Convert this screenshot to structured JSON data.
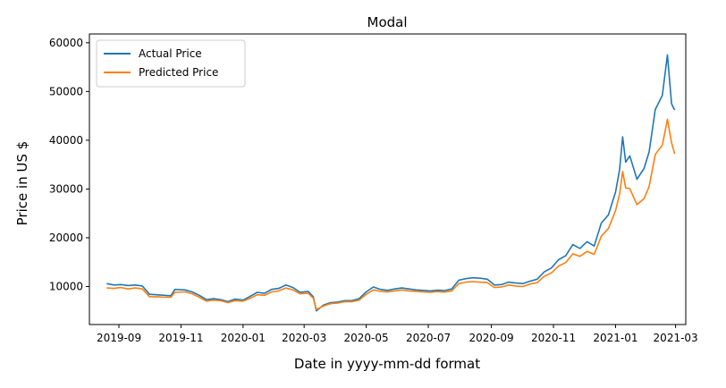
{
  "chart_data": {
    "type": "line",
    "title": "Modal",
    "xlabel": "Date in yyyy-mm-dd format",
    "ylabel": "Price in US $",
    "x_ticks": [
      "2019-09",
      "2019-11",
      "2020-01",
      "2020-03",
      "2020-05",
      "2020-07",
      "2020-09",
      "2020-11",
      "2021-01",
      "2021-03"
    ],
    "y_ticks": [
      10000,
      20000,
      30000,
      40000,
      50000,
      60000
    ],
    "x_range": [
      "2019-08-03",
      "2021-03-11"
    ],
    "ylim": [
      2200,
      61800
    ],
    "grid": false,
    "legend": "top-left",
    "colors": {
      "actual": "#1f77b4",
      "predicted": "#ff7f0e"
    },
    "series": [
      {
        "name": "Actual Price",
        "points": [
          [
            "2019-08-20",
            10600
          ],
          [
            "2019-08-27",
            10300
          ],
          [
            "2019-09-03",
            10400
          ],
          [
            "2019-09-10",
            10200
          ],
          [
            "2019-09-17",
            10300
          ],
          [
            "2019-09-24",
            10100
          ],
          [
            "2019-10-01",
            8400
          ],
          [
            "2019-10-08",
            8300
          ],
          [
            "2019-10-15",
            8200
          ],
          [
            "2019-10-22",
            8100
          ],
          [
            "2019-10-26",
            9400
          ],
          [
            "2019-11-05",
            9300
          ],
          [
            "2019-11-12",
            8900
          ],
          [
            "2019-11-19",
            8200
          ],
          [
            "2019-11-26",
            7300
          ],
          [
            "2019-12-03",
            7500
          ],
          [
            "2019-12-10",
            7300
          ],
          [
            "2019-12-17",
            6900
          ],
          [
            "2019-12-24",
            7400
          ],
          [
            "2020-01-01",
            7200
          ],
          [
            "2020-01-08",
            8000
          ],
          [
            "2020-01-15",
            8800
          ],
          [
            "2020-01-22",
            8600
          ],
          [
            "2020-01-29",
            9400
          ],
          [
            "2020-02-05",
            9600
          ],
          [
            "2020-02-12",
            10300
          ],
          [
            "2020-02-19",
            9800
          ],
          [
            "2020-02-26",
            8800
          ],
          [
            "2020-03-05",
            9000
          ],
          [
            "2020-03-10",
            7900
          ],
          [
            "2020-03-13",
            5000
          ],
          [
            "2020-03-20",
            6200
          ],
          [
            "2020-03-27",
            6700
          ],
          [
            "2020-04-03",
            6800
          ],
          [
            "2020-04-10",
            7100
          ],
          [
            "2020-04-17",
            7100
          ],
          [
            "2020-04-24",
            7500
          ],
          [
            "2020-05-01",
            8900
          ],
          [
            "2020-05-08",
            9900
          ],
          [
            "2020-05-15",
            9400
          ],
          [
            "2020-05-22",
            9200
          ],
          [
            "2020-05-29",
            9500
          ],
          [
            "2020-06-05",
            9700
          ],
          [
            "2020-06-12",
            9500
          ],
          [
            "2020-06-19",
            9300
          ],
          [
            "2020-06-26",
            9200
          ],
          [
            "2020-07-03",
            9100
          ],
          [
            "2020-07-10",
            9250
          ],
          [
            "2020-07-17",
            9150
          ],
          [
            "2020-07-24",
            9500
          ],
          [
            "2020-07-31",
            11300
          ],
          [
            "2020-08-07",
            11600
          ],
          [
            "2020-08-14",
            11800
          ],
          [
            "2020-08-21",
            11700
          ],
          [
            "2020-08-28",
            11500
          ],
          [
            "2020-09-04",
            10300
          ],
          [
            "2020-09-11",
            10400
          ],
          [
            "2020-09-18",
            10900
          ],
          [
            "2020-09-25",
            10700
          ],
          [
            "2020-10-02",
            10600
          ],
          [
            "2020-10-09",
            11100
          ],
          [
            "2020-10-16",
            11500
          ],
          [
            "2020-10-23",
            13000
          ],
          [
            "2020-10-30",
            13800
          ],
          [
            "2020-11-06",
            15500
          ],
          [
            "2020-11-13",
            16300
          ],
          [
            "2020-11-20",
            18600
          ],
          [
            "2020-11-27",
            17800
          ],
          [
            "2020-12-04",
            19200
          ],
          [
            "2020-12-11",
            18300
          ],
          [
            "2020-12-18",
            23000
          ],
          [
            "2020-12-25",
            24700
          ],
          [
            "2021-01-01",
            29400
          ],
          [
            "2021-01-05",
            34000
          ],
          [
            "2021-01-08",
            40700
          ],
          [
            "2021-01-11",
            35500
          ],
          [
            "2021-01-15",
            36800
          ],
          [
            "2021-01-22",
            32000
          ],
          [
            "2021-01-29",
            34200
          ],
          [
            "2021-02-03",
            37600
          ],
          [
            "2021-02-09",
            46300
          ],
          [
            "2021-02-16",
            49200
          ],
          [
            "2021-02-21",
            57500
          ],
          [
            "2021-02-25",
            47500
          ],
          [
            "2021-02-28",
            46200
          ]
        ]
      },
      {
        "name": "Predicted Price",
        "points": [
          [
            "2019-08-20",
            9700
          ],
          [
            "2019-08-27",
            9600
          ],
          [
            "2019-09-03",
            9800
          ],
          [
            "2019-09-10",
            9500
          ],
          [
            "2019-09-17",
            9700
          ],
          [
            "2019-09-24",
            9500
          ],
          [
            "2019-10-01",
            7900
          ],
          [
            "2019-10-08",
            7900
          ],
          [
            "2019-10-15",
            7800
          ],
          [
            "2019-10-22",
            7800
          ],
          [
            "2019-10-26",
            8800
          ],
          [
            "2019-11-05",
            8900
          ],
          [
            "2019-11-12",
            8500
          ],
          [
            "2019-11-19",
            7800
          ],
          [
            "2019-11-26",
            7000
          ],
          [
            "2019-12-03",
            7200
          ],
          [
            "2019-12-10",
            7100
          ],
          [
            "2019-12-17",
            6700
          ],
          [
            "2019-12-24",
            7100
          ],
          [
            "2020-01-01",
            7000
          ],
          [
            "2020-01-08",
            7600
          ],
          [
            "2020-01-15",
            8300
          ],
          [
            "2020-01-22",
            8200
          ],
          [
            "2020-01-29",
            8900
          ],
          [
            "2020-02-05",
            9100
          ],
          [
            "2020-02-12",
            9700
          ],
          [
            "2020-02-19",
            9300
          ],
          [
            "2020-02-26",
            8500
          ],
          [
            "2020-03-05",
            8600
          ],
          [
            "2020-03-10",
            7600
          ],
          [
            "2020-03-13",
            5300
          ],
          [
            "2020-03-20",
            6000
          ],
          [
            "2020-03-27",
            6500
          ],
          [
            "2020-04-03",
            6600
          ],
          [
            "2020-04-10",
            6900
          ],
          [
            "2020-04-17",
            6900
          ],
          [
            "2020-04-24",
            7200
          ],
          [
            "2020-05-01",
            8400
          ],
          [
            "2020-05-08",
            9300
          ],
          [
            "2020-05-15",
            9000
          ],
          [
            "2020-05-22",
            8900
          ],
          [
            "2020-05-29",
            9100
          ],
          [
            "2020-06-05",
            9300
          ],
          [
            "2020-06-12",
            9100
          ],
          [
            "2020-06-19",
            9000
          ],
          [
            "2020-06-26",
            8900
          ],
          [
            "2020-07-03",
            8800
          ],
          [
            "2020-07-10",
            8950
          ],
          [
            "2020-07-17",
            8850
          ],
          [
            "2020-07-24",
            9100
          ],
          [
            "2020-07-31",
            10600
          ],
          [
            "2020-08-07",
            10900
          ],
          [
            "2020-08-14",
            11000
          ],
          [
            "2020-08-21",
            10900
          ],
          [
            "2020-08-28",
            10800
          ],
          [
            "2020-09-04",
            9800
          ],
          [
            "2020-09-11",
            9900
          ],
          [
            "2020-09-18",
            10300
          ],
          [
            "2020-09-25",
            10100
          ],
          [
            "2020-10-02",
            10000
          ],
          [
            "2020-10-09",
            10500
          ],
          [
            "2020-10-16",
            10800
          ],
          [
            "2020-10-23",
            12100
          ],
          [
            "2020-10-30",
            12800
          ],
          [
            "2020-11-06",
            14200
          ],
          [
            "2020-11-13",
            14900
          ],
          [
            "2020-11-20",
            16700
          ],
          [
            "2020-11-27",
            16200
          ],
          [
            "2020-12-04",
            17200
          ],
          [
            "2020-12-11",
            16600
          ],
          [
            "2020-12-18",
            20300
          ],
          [
            "2020-12-25",
            21900
          ],
          [
            "2021-01-01",
            25600
          ],
          [
            "2021-01-05",
            29000
          ],
          [
            "2021-01-08",
            33600
          ],
          [
            "2021-01-11",
            30200
          ],
          [
            "2021-01-15",
            30100
          ],
          [
            "2021-01-22",
            26800
          ],
          [
            "2021-01-29",
            28000
          ],
          [
            "2021-02-03",
            30500
          ],
          [
            "2021-02-09",
            37100
          ],
          [
            "2021-02-16",
            39000
          ],
          [
            "2021-02-21",
            44300
          ],
          [
            "2021-02-25",
            39500
          ],
          [
            "2021-02-28",
            37200
          ]
        ]
      }
    ]
  }
}
